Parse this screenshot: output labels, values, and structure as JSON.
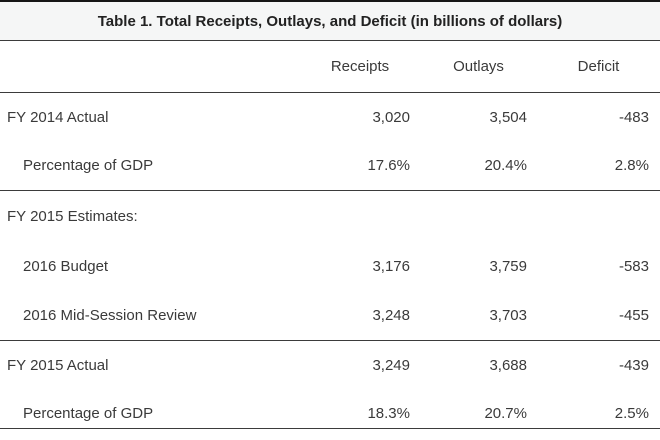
{
  "title": "Table 1. Total Receipts, Outlays, and Deficit (in billions of dollars)",
  "columns": {
    "receipts": "Receipts",
    "outlays": "Outlays",
    "deficit": "Deficit"
  },
  "rows": [
    {
      "label": "FY 2014 Actual",
      "indent": false,
      "receipts": "3,020",
      "outlays": "3,504",
      "deficit": "-483"
    },
    {
      "label": "Percentage of GDP",
      "indent": true,
      "receipts": "17.6%",
      "outlays": "20.4%",
      "deficit": "2.8%"
    },
    {
      "label": "FY 2015 Estimates:",
      "indent": false,
      "receipts": "",
      "outlays": "",
      "deficit": ""
    },
    {
      "label": "2016 Budget",
      "indent": true,
      "receipts": "3,176",
      "outlays": "3,759",
      "deficit": "-583"
    },
    {
      "label": "2016 Mid-Session Review",
      "indent": true,
      "receipts": "3,248",
      "outlays": "3,703",
      "deficit": "-455"
    },
    {
      "label": "FY 2015 Actual",
      "indent": false,
      "receipts": "3,249",
      "outlays": "3,688",
      "deficit": "-439"
    },
    {
      "label": "Percentage of GDP",
      "indent": true,
      "receipts": "18.3%",
      "outlays": "20.7%",
      "deficit": "2.5%"
    }
  ],
  "colors": {
    "text": "#3a3a3a",
    "rule": "#3b3b3b",
    "top_rule": "#161616",
    "title_band_bg": "#f5f6f6"
  }
}
